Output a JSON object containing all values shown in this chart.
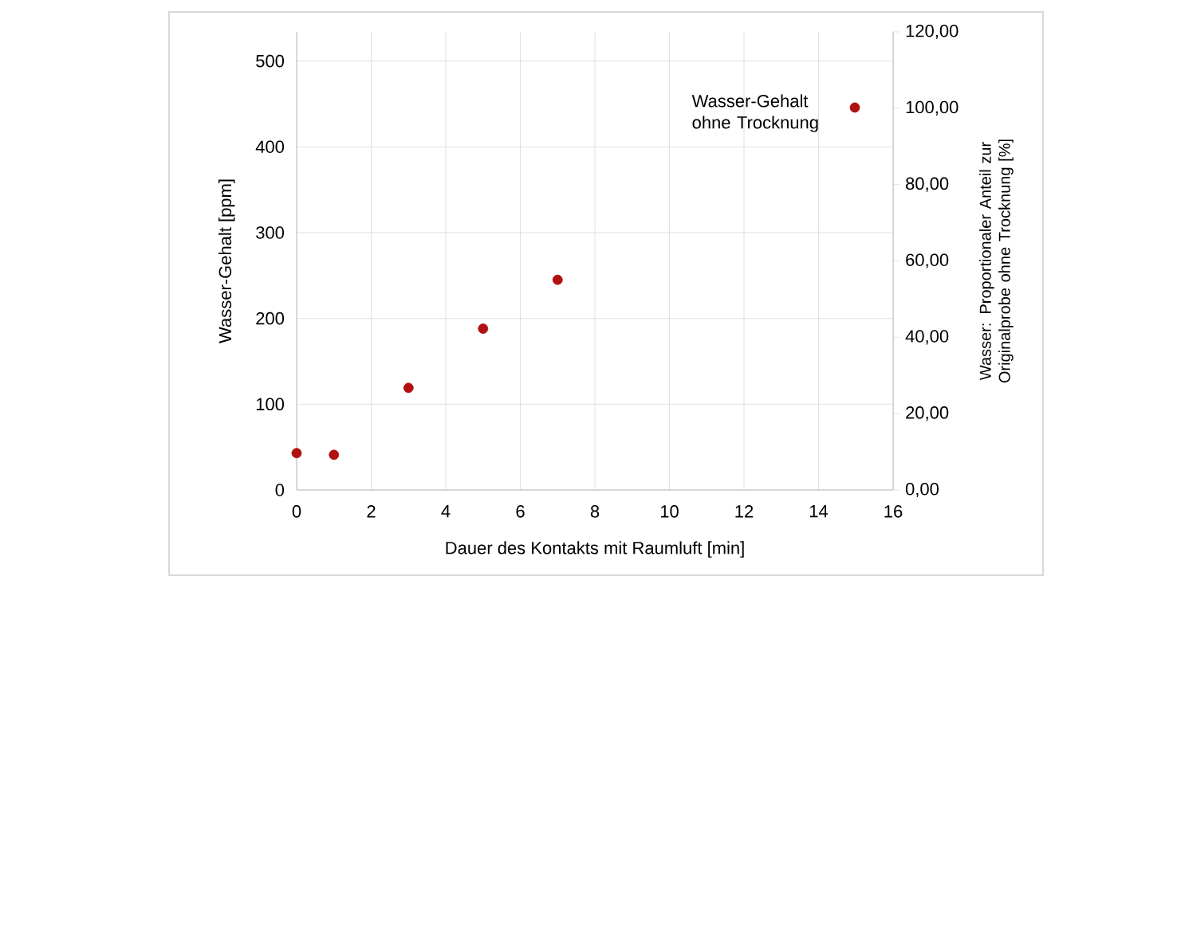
{
  "chart_data": {
    "type": "scatter",
    "xlabel": "Dauer des Kontakts mit Raumluft [min]",
    "ylabel": "Wasser-Gehalt [ppm]",
    "y2label": "Wasser: Proportionaler Anteil zur Originalprobe ohne Trocknung [%]",
    "x": [
      0,
      1,
      3,
      5,
      7
    ],
    "series": [
      {
        "name": "Wasser-Gehalt ohne Trocknung",
        "color": "#b01010",
        "values": [
          43,
          41,
          119,
          188,
          245
        ]
      }
    ],
    "xlim": [
      0,
      16
    ],
    "xticks": [
      0,
      2,
      4,
      6,
      8,
      10,
      12,
      14,
      16
    ],
    "ylim": [
      0,
      534
    ],
    "yticks": [
      0,
      100,
      200,
      300,
      400,
      500
    ],
    "y2lim": [
      0,
      120
    ],
    "y2ticks": [
      {
        "value": 0,
        "label": "0,00"
      },
      {
        "value": 20,
        "label": "20,00"
      },
      {
        "value": 40,
        "label": "40,00"
      },
      {
        "value": 60,
        "label": "60,00"
      },
      {
        "value": 80,
        "label": "80,00"
      },
      {
        "value": 100,
        "label": "100,00"
      },
      {
        "value": 120,
        "label": "120,00"
      }
    ],
    "grid": true,
    "legend": "top right",
    "marker": "circle"
  }
}
